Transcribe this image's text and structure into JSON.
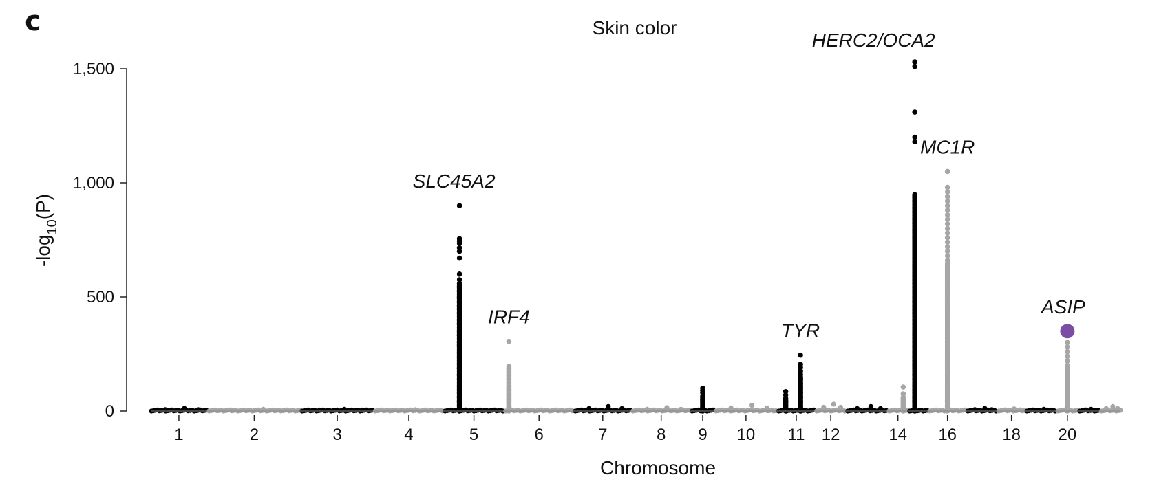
{
  "panel_letter": "c",
  "chart_data": {
    "type": "scatter",
    "subtype": "manhattan",
    "title": "Skin color",
    "xlabel": "Chromosome",
    "ylabel_main": "-log",
    "ylabel_sub": "10",
    "ylabel_paren": "(P)",
    "ylim": [
      0,
      1500
    ],
    "yticks": [
      {
        "value": 0,
        "label": "0"
      },
      {
        "value": 500,
        "label": "500"
      },
      {
        "value": 1000,
        "label": "1,000"
      },
      {
        "value": 1500,
        "label": "1,500"
      }
    ],
    "colors": {
      "odd": "#000000",
      "even": "#a6a6a6",
      "highlight": "#7b4ea3"
    },
    "chromosomes": [
      {
        "chr": 1,
        "tick": "1",
        "max": 12
      },
      {
        "chr": 2,
        "tick": "2",
        "max": 8
      },
      {
        "chr": 3,
        "tick": "3",
        "max": 8
      },
      {
        "chr": 4,
        "tick": "4",
        "max": 6
      },
      {
        "chr": 5,
        "tick": "5",
        "max": 900
      },
      {
        "chr": 6,
        "tick": "6",
        "max": 305
      },
      {
        "chr": 7,
        "tick": "7",
        "max": 20
      },
      {
        "chr": 8,
        "tick": "8",
        "max": 15
      },
      {
        "chr": 9,
        "tick": "9",
        "max": 100
      },
      {
        "chr": 10,
        "tick": "10",
        "max": 25
      },
      {
        "chr": 11,
        "tick": "11",
        "max": 245
      },
      {
        "chr": 12,
        "tick": "12",
        "max": 30
      },
      {
        "chr": 13,
        "tick": "",
        "max": 20
      },
      {
        "chr": 14,
        "tick": "14",
        "max": 105
      },
      {
        "chr": 15,
        "tick": "",
        "max": 1530
      },
      {
        "chr": 16,
        "tick": "16",
        "max": 1050
      },
      {
        "chr": 17,
        "tick": "",
        "max": 12
      },
      {
        "chr": 18,
        "tick": "18",
        "max": 10
      },
      {
        "chr": 19,
        "tick": "",
        "max": 8
      },
      {
        "chr": 20,
        "tick": "20",
        "max": 300
      },
      {
        "chr": 21,
        "tick": "",
        "max": 8
      },
      {
        "chr": 22,
        "tick": "",
        "max": 20
      }
    ],
    "peaks": [
      {
        "gene": "SLC45A2",
        "chr": 5,
        "values": [
          900,
          755,
          745,
          735,
          715,
          700,
          670,
          600,
          575,
          525,
          500,
          460,
          420,
          400,
          385,
          360,
          345,
          330,
          300,
          290,
          185,
          160,
          140,
          120,
          100,
          80,
          60,
          40,
          25,
          10
        ]
      },
      {
        "gene": "IRF4",
        "chr": 6,
        "values": [
          305,
          195,
          95,
          70,
          50,
          35,
          20,
          10
        ]
      },
      {
        "gene": "",
        "chr": 9,
        "values": [
          100,
          90,
          80,
          65,
          50,
          35,
          20,
          10
        ]
      },
      {
        "gene": "",
        "chr": 11,
        "values": [
          85,
          70,
          55,
          40,
          25,
          10
        ]
      },
      {
        "gene": "TYR",
        "chr": 11,
        "values": [
          245,
          205,
          190,
          175,
          160,
          140,
          120,
          100,
          80,
          60,
          40,
          20
        ]
      },
      {
        "gene": "",
        "chr": 14,
        "values": [
          105,
          75,
          55,
          35,
          20
        ]
      },
      {
        "gene": "HERC2/OCA2",
        "chr": 15,
        "values": [
          1530,
          1510,
          1310,
          1200,
          1180,
          795,
          780,
          760,
          720,
          635,
          600,
          580,
          560,
          540,
          520,
          500,
          480,
          460,
          440,
          420,
          400,
          380,
          360,
          340,
          320,
          300,
          280,
          260,
          240,
          220,
          200,
          180,
          160,
          140,
          120,
          100,
          80,
          60,
          40,
          20
        ]
      },
      {
        "gene": "MC1R",
        "chr": 16,
        "values": [
          1050,
          980,
          960,
          940,
          920,
          900,
          880,
          860,
          840,
          820,
          800,
          780,
          760,
          740,
          720,
          700,
          680,
          660,
          640,
          620,
          600,
          580,
          560,
          540,
          520,
          500,
          480,
          460,
          440,
          420,
          400,
          380,
          360,
          340,
          320,
          300,
          280,
          260,
          240,
          220,
          200,
          180,
          160,
          140,
          120,
          100,
          80,
          60,
          40,
          20
        ]
      },
      {
        "gene": "ASIP",
        "chr": 20,
        "values": [
          300,
          280,
          260,
          240,
          220,
          200,
          180,
          160,
          140,
          120,
          100,
          80,
          60,
          40,
          20
        ],
        "highlight_value": 350
      }
    ]
  }
}
